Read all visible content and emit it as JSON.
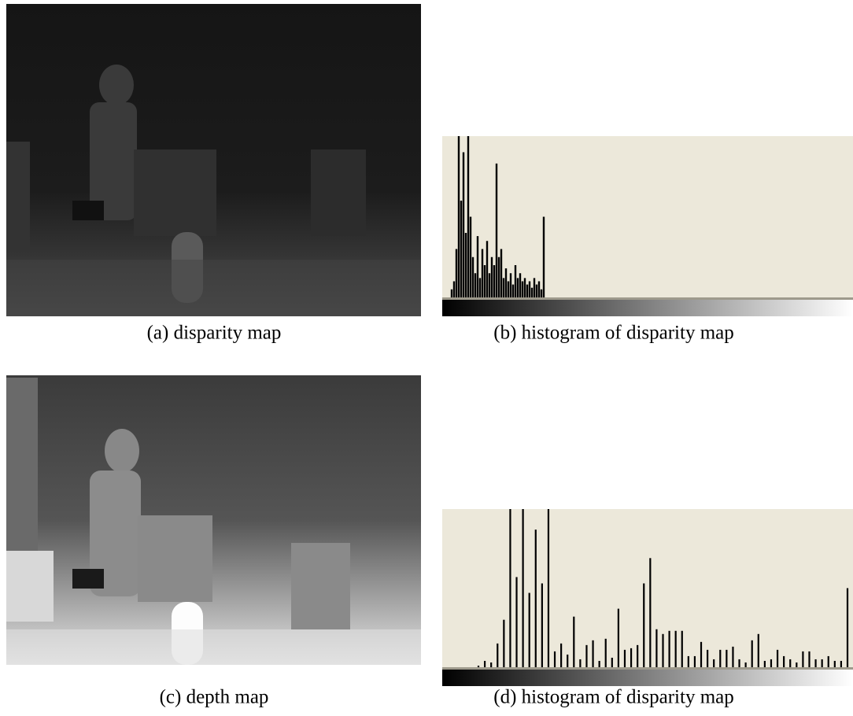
{
  "panels": [
    {
      "caption": "(a) disparity map"
    },
    {
      "caption": "(b) histogram of disparity map",
      "histogram": [
        5,
        10,
        30,
        100,
        60,
        90,
        40,
        100,
        50,
        25,
        15,
        38,
        12,
        30,
        20,
        35,
        15,
        25,
        20,
        83,
        25,
        30,
        12,
        18,
        10,
        15,
        8,
        20,
        12,
        15,
        10,
        12,
        8,
        10,
        6,
        12,
        8,
        10,
        5,
        50
      ]
    },
    {
      "caption": "(c) depth map"
    },
    {
      "caption": "(d) histogram of disparity map",
      "histogram": [
        1,
        4,
        3,
        15,
        30,
        100,
        57,
        100,
        47,
        87,
        53,
        100,
        10,
        15,
        8,
        32,
        5,
        14,
        17,
        4,
        18,
        6,
        37,
        11,
        12,
        14,
        53,
        69,
        24,
        21,
        23,
        23,
        23,
        7,
        7,
        16,
        11,
        5,
        11,
        11,
        13,
        5,
        3,
        17,
        21,
        4,
        5,
        11,
        7,
        5,
        3,
        10,
        10,
        5,
        5,
        7,
        4,
        4,
        50
      ]
    }
  ]
}
